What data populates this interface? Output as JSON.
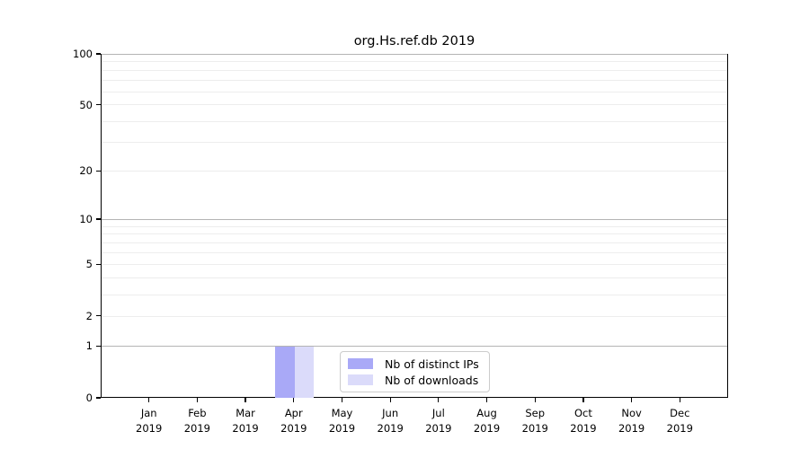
{
  "title": "org.Hs.ref.db 2019",
  "legend": {
    "items": [
      {
        "label": "Nb of distinct IPs",
        "color": "#a9a9f7"
      },
      {
        "label": "Nb of downloads",
        "color": "#dbdbfa"
      }
    ]
  },
  "axes": {
    "y_tick_labels": [
      "100",
      "50",
      "20",
      "10",
      "5",
      "2",
      "1",
      "0"
    ],
    "y_tick_values": [
      100,
      50,
      20,
      10,
      5,
      2,
      1,
      0
    ],
    "x_ticks": [
      {
        "month": "Jan",
        "year": "2019"
      },
      {
        "month": "Feb",
        "year": "2019"
      },
      {
        "month": "Mar",
        "year": "2019"
      },
      {
        "month": "Apr",
        "year": "2019"
      },
      {
        "month": "May",
        "year": "2019"
      },
      {
        "month": "Jun",
        "year": "2019"
      },
      {
        "month": "Jul",
        "year": "2019"
      },
      {
        "month": "Aug",
        "year": "2019"
      },
      {
        "month": "Sep",
        "year": "2019"
      },
      {
        "month": "Oct",
        "year": "2019"
      },
      {
        "month": "Nov",
        "year": "2019"
      },
      {
        "month": "Dec",
        "year": "2019"
      }
    ]
  },
  "chart_data": {
    "type": "bar",
    "title": "org.Hs.ref.db 2019",
    "xlabel": "",
    "ylabel": "",
    "scale": "log1p",
    "ylim": [
      0,
      100
    ],
    "categories": [
      "Jan 2019",
      "Feb 2019",
      "Mar 2019",
      "Apr 2019",
      "May 2019",
      "Jun 2019",
      "Jul 2019",
      "Aug 2019",
      "Sep 2019",
      "Oct 2019",
      "Nov 2019",
      "Dec 2019"
    ],
    "series": [
      {
        "name": "Nb of distinct IPs",
        "color": "#a9a9f7",
        "values": [
          0,
          0,
          0,
          1,
          0,
          0,
          0,
          0,
          0,
          0,
          0,
          0
        ]
      },
      {
        "name": "Nb of downloads",
        "color": "#dbdbfa",
        "values": [
          0,
          0,
          0,
          1,
          0,
          0,
          0,
          0,
          0,
          0,
          0,
          0
        ]
      }
    ],
    "legend_position": "bottom-center-inside",
    "grid": true,
    "gridlines": {
      "major": [
        1,
        10,
        100
      ],
      "minor": [
        2,
        3,
        4,
        5,
        6,
        7,
        8,
        9,
        20,
        30,
        40,
        50,
        60,
        70,
        80,
        90
      ]
    }
  },
  "colors": {
    "bar_distinct_ips": "#a9a9f7",
    "bar_downloads": "#dbdbfa",
    "grid_major": "#b4b4b4",
    "grid_minor": "#ededed",
    "axis": "#000000",
    "background": "#ffffff"
  }
}
